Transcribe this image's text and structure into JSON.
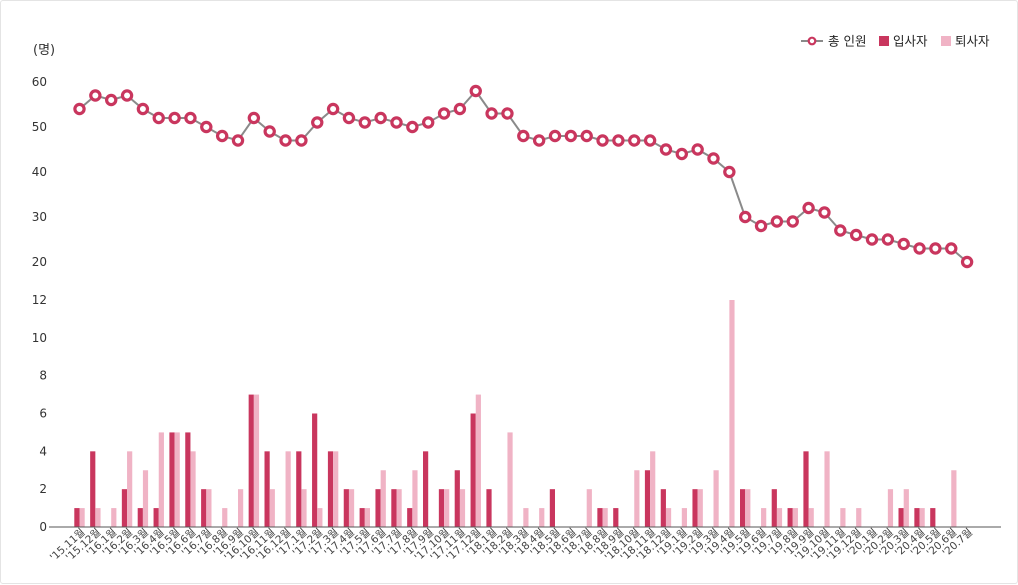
{
  "chart_data": {
    "type": "line+bar",
    "unit": "(명)",
    "legend": {
      "placement": "top-right",
      "items": [
        {
          "name": "총 인원",
          "color": "#c9365e",
          "marker": "line-circle"
        },
        {
          "name": "입사자",
          "color": "#c9365e",
          "marker": "square"
        },
        {
          "name": "퇴사자",
          "color": "#f0b3c5",
          "marker": "square"
        }
      ]
    },
    "categories": [
      "'15.11월",
      "'15.12월",
      "'16.1월",
      "'16.2월",
      "'16.3월",
      "'16.4월",
      "'16.5월",
      "'16.6월",
      "'16.7월",
      "'16.8월",
      "'16.9월",
      "'16.10월",
      "'16.11월",
      "'16.12월",
      "'17.1월",
      "'17.2월",
      "'17.3월",
      "'17.4월",
      "'17.5월",
      "'17.6월",
      "'17.7월",
      "'17.8월",
      "'17.9월",
      "'17.10월",
      "'17.11월",
      "'17.12월",
      "'18.1월",
      "'18.2월",
      "'18.3월",
      "'18.4월",
      "'18.5월",
      "'18.6월",
      "'18.7월",
      "'18.8월",
      "'18.9월",
      "'18.10월",
      "'18.11월",
      "'18.12월",
      "'19.1월",
      "'19.2월",
      "'19.3월",
      "'19.4월",
      "'19.5월",
      "'19.6월",
      "'19.7월",
      "'19.8월",
      "'19.9월",
      "'19.10월",
      "'19.11월",
      "'19.12월",
      "'20.1월",
      "'20.2월",
      "'20.3월",
      "'20.4월",
      "'20.5월",
      "'20.6월",
      "'20.7월"
    ],
    "upper_axis": {
      "ticks": [
        60,
        50,
        40,
        30,
        20
      ],
      "ylim": [
        20,
        60
      ]
    },
    "lower_axis": {
      "ticks": [
        12,
        10,
        8,
        6,
        4,
        2,
        0
      ],
      "ylim": [
        0,
        12
      ]
    },
    "series": [
      {
        "name": "총 인원",
        "type": "line",
        "axis": "upper",
        "values": [
          54,
          57,
          56,
          57,
          54,
          52,
          52,
          52,
          50,
          48,
          47,
          52,
          49,
          47,
          47,
          51,
          54,
          52,
          51,
          52,
          51,
          50,
          51,
          53,
          54,
          58,
          53,
          53,
          48,
          47,
          48,
          48,
          48,
          47,
          47,
          47,
          47,
          45,
          44,
          45,
          43,
          40,
          30,
          28,
          29,
          29,
          32,
          31,
          27,
          26,
          25,
          25,
          24,
          23,
          23,
          23,
          20
        ]
      },
      {
        "name": "입사자",
        "type": "bar",
        "axis": "lower",
        "values": [
          1,
          4,
          0,
          2,
          1,
          1,
          5,
          5,
          2,
          0,
          0,
          7,
          4,
          0,
          4,
          6,
          4,
          2,
          1,
          2,
          2,
          1,
          4,
          2,
          3,
          6,
          2,
          0,
          0,
          0,
          2,
          0,
          0,
          1,
          1,
          0,
          3,
          2,
          0,
          2,
          0,
          0,
          2,
          0,
          2,
          1,
          4,
          0,
          0,
          0,
          0,
          0,
          1,
          1,
          1,
          0,
          0
        ]
      },
      {
        "name": "퇴사자",
        "type": "bar",
        "axis": "lower",
        "values": [
          1,
          1,
          1,
          4,
          3,
          5,
          5,
          4,
          2,
          1,
          2,
          7,
          2,
          4,
          2,
          1,
          4,
          2,
          1,
          3,
          2,
          3,
          0,
          2,
          2,
          7,
          0,
          5,
          1,
          1,
          0,
          0,
          2,
          1,
          0,
          3,
          4,
          1,
          1,
          2,
          3,
          12,
          2,
          1,
          1,
          1,
          1,
          4,
          1,
          1,
          0,
          2,
          2,
          1,
          0,
          3,
          0
        ]
      }
    ]
  }
}
